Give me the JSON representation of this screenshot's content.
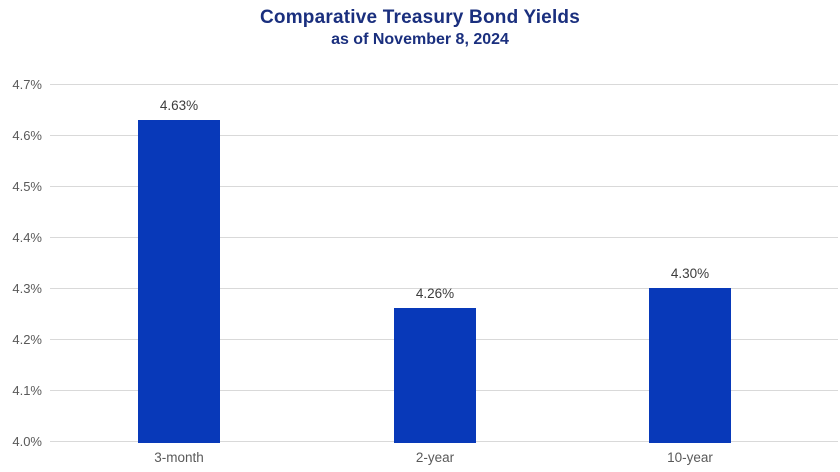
{
  "chart_data": {
    "type": "bar",
    "title": "Comparative Treasury Bond Yields",
    "subtitle": "as of November 8, 2024",
    "categories": [
      "3-month",
      "2-year",
      "10-year"
    ],
    "values": [
      4.63,
      4.26,
      4.3
    ],
    "value_labels": [
      "4.63%",
      "4.26%",
      "4.30%"
    ],
    "xlabel": "",
    "ylabel": "",
    "ylim": [
      4.0,
      4.7
    ],
    "ytick_step": 0.1,
    "ytick_labels": [
      "4.0%",
      "4.1%",
      "4.2%",
      "4.3%",
      "4.4%",
      "4.5%",
      "4.6%",
      "4.7%"
    ],
    "grid": true,
    "legend": "none",
    "colors": {
      "bar": "#0839B9",
      "title": "#1A2F7E",
      "gridline": "#D9D9D9",
      "axis_text": "#595959",
      "data_label": "#3C3C3C"
    }
  }
}
